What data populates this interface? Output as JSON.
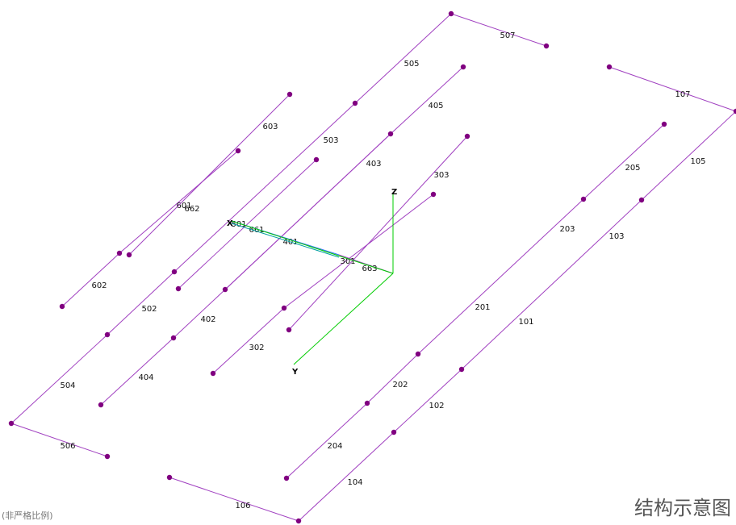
{
  "diagram": {
    "caption_title": "结构示意图",
    "caption_note": "(非严格比例)",
    "colors": {
      "member": "#a040c0",
      "node": "#800080",
      "axis": "#00cc00",
      "highlight_a": "#3070ff",
      "highlight_b": "#00a0a0"
    },
    "axes": {
      "x_label": "X",
      "y_label": "Y",
      "z_label": "Z"
    },
    "members": [
      {
        "id": "101",
        "label": "101"
      },
      {
        "id": "102",
        "label": "102"
      },
      {
        "id": "103",
        "label": "103"
      },
      {
        "id": "104",
        "label": "104"
      },
      {
        "id": "105",
        "label": "105"
      },
      {
        "id": "106",
        "label": "106"
      },
      {
        "id": "107",
        "label": "107"
      },
      {
        "id": "201",
        "label": "201"
      },
      {
        "id": "202",
        "label": "202"
      },
      {
        "id": "203",
        "label": "203"
      },
      {
        "id": "204",
        "label": "204"
      },
      {
        "id": "205",
        "label": "205"
      },
      {
        "id": "301",
        "label": "301"
      },
      {
        "id": "302",
        "label": "302"
      },
      {
        "id": "303",
        "label": "303"
      },
      {
        "id": "401",
        "label": "401"
      },
      {
        "id": "402",
        "label": "402"
      },
      {
        "id": "403",
        "label": "403"
      },
      {
        "id": "404",
        "label": "404"
      },
      {
        "id": "405",
        "label": "405"
      },
      {
        "id": "501",
        "label": "501"
      },
      {
        "id": "502",
        "label": "502"
      },
      {
        "id": "503",
        "label": "503"
      },
      {
        "id": "504",
        "label": "504"
      },
      {
        "id": "505",
        "label": "505"
      },
      {
        "id": "506",
        "label": "506"
      },
      {
        "id": "507",
        "label": "507"
      },
      {
        "id": "601",
        "label": "601"
      },
      {
        "id": "602",
        "label": "602"
      },
      {
        "id": "603",
        "label": "603"
      },
      {
        "id": "661",
        "label": "661"
      },
      {
        "id": "662",
        "label": "662"
      },
      {
        "id": "663",
        "label": "663"
      }
    ]
  }
}
